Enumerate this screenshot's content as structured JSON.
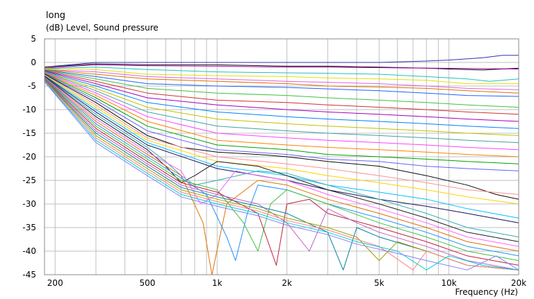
{
  "chart_data": {
    "type": "line",
    "title": "long",
    "ylabel": "(dB)  Level, Sound pressure",
    "xlabel": "Frequency  (Hz)",
    "xscale": "log",
    "xlim": [
      180,
      20000
    ],
    "ylim": [
      -45,
      5
    ],
    "yticks": [
      5,
      0,
      -5,
      -10,
      -15,
      -20,
      -25,
      -30,
      -35,
      -40,
      -45
    ],
    "xticks": [
      {
        "value": 200,
        "label": "200"
      },
      {
        "value": 500,
        "label": "500"
      },
      {
        "value": 1000,
        "label": "1k"
      },
      {
        "value": 2000,
        "label": "2k"
      },
      {
        "value": 5000,
        "label": "5k"
      },
      {
        "value": 10000,
        "label": "10k"
      },
      {
        "value": 20000,
        "label": "20k"
      }
    ],
    "grid": true,
    "legend": "none",
    "background": "#ffffff",
    "series_note": "approx. 36 overlaid frequency-response curves (polar set), values estimated",
    "series": [
      {
        "color": "#3030b0",
        "x": [
          180,
          300,
          500,
          1000,
          2000,
          3000,
          5000,
          8000,
          10000,
          14000,
          17000,
          20000
        ],
        "y": [
          -1,
          0,
          0,
          0,
          0,
          0,
          0,
          0.3,
          0.5,
          1,
          1.5,
          1.5
        ]
      },
      {
        "color": "#101010",
        "x": [
          180,
          300,
          500,
          1000,
          2000,
          3000,
          5000,
          8000,
          10000,
          14000,
          20000
        ],
        "y": [
          -1,
          -0.3,
          -0.5,
          -0.5,
          -0.8,
          -0.8,
          -1,
          -1.2,
          -1.4,
          -1.6,
          -1.2
        ]
      },
      {
        "color": "#a000a0",
        "x": [
          180,
          300,
          500,
          1000,
          2000,
          3000,
          5000,
          8000,
          12000,
          20000
        ],
        "y": [
          -1.2,
          -0.5,
          -0.7,
          -0.8,
          -1,
          -1,
          -1.1,
          -1.2,
          -1.3,
          -1.4
        ]
      },
      {
        "color": "#20c0c0",
        "x": [
          180,
          300,
          500,
          1000,
          2000,
          3000,
          5000,
          8000,
          12000,
          15000,
          20000
        ],
        "y": [
          -1.3,
          -1,
          -1.5,
          -2,
          -2.2,
          -2.3,
          -2.5,
          -3,
          -3.5,
          -4,
          -3.5
        ]
      },
      {
        "color": "#e0e000",
        "x": [
          180,
          300,
          500,
          1000,
          2000,
          3000,
          5000,
          8000,
          12000,
          20000
        ],
        "y": [
          -1.4,
          -1.5,
          -2.5,
          -2.8,
          -3,
          -3.3,
          -3.5,
          -3.8,
          -4.5,
          -4.5
        ]
      },
      {
        "color": "#e060e0",
        "x": [
          180,
          300,
          500,
          1000,
          2000,
          3000,
          5000,
          8000,
          12000,
          20000
        ],
        "y": [
          -1.5,
          -2,
          -3,
          -3.5,
          -4,
          -4.2,
          -4.5,
          -5,
          -5.5,
          -5.8
        ]
      },
      {
        "color": "#e07000",
        "x": [
          180,
          300,
          500,
          1000,
          2000,
          3000,
          5000,
          8000,
          12000,
          20000
        ],
        "y": [
          -1.5,
          -2.5,
          -3.5,
          -4,
          -4.5,
          -5,
          -5.2,
          -5.5,
          -6,
          -6.5
        ]
      },
      {
        "color": "#2060ff",
        "x": [
          180,
          300,
          500,
          1000,
          2000,
          3000,
          5000,
          8000,
          12000,
          20000
        ],
        "y": [
          -1.6,
          -3,
          -4.5,
          -5,
          -5.3,
          -5.6,
          -6,
          -6.5,
          -7,
          -7.2
        ]
      },
      {
        "color": "#40c040",
        "x": [
          180,
          300,
          500,
          1000,
          2000,
          3000,
          5000,
          8000,
          12000,
          20000
        ],
        "y": [
          -1.6,
          -3.5,
          -5.5,
          -6.5,
          -7,
          -7.5,
          -8,
          -8.5,
          -9,
          -9.5
        ]
      },
      {
        "color": "#d03030",
        "x": [
          180,
          300,
          500,
          1000,
          2000,
          3000,
          5000,
          8000,
          12000,
          20000
        ],
        "y": [
          -1.7,
          -4,
          -6.5,
          -8,
          -8.5,
          -9,
          -9.5,
          -10,
          -10.5,
          -11
        ]
      },
      {
        "color": "#a000c0",
        "x": [
          180,
          300,
          500,
          1000,
          2000,
          3000,
          5000,
          8000,
          12000,
          20000
        ],
        "y": [
          -1.8,
          -4.5,
          -7.5,
          -9,
          -10,
          -10.5,
          -11,
          -11.5,
          -12,
          -12.5
        ]
      },
      {
        "color": "#0080ff",
        "x": [
          180,
          300,
          500,
          1000,
          2000,
          3000,
          5000,
          8000,
          12000,
          20000
        ],
        "y": [
          -1.9,
          -5,
          -8.5,
          -10.5,
          -11.5,
          -12,
          -12.5,
          -13,
          -13.5,
          -14
        ]
      },
      {
        "color": "#c0c000",
        "x": [
          180,
          300,
          500,
          1000,
          2000,
          3000,
          5000,
          8000,
          12000,
          20000
        ],
        "y": [
          -2,
          -5.5,
          -9.5,
          -12,
          -13,
          -13.5,
          -14,
          -14.5,
          -15,
          -15.5
        ]
      },
      {
        "color": "#40a0a0",
        "x": [
          180,
          300,
          500,
          1000,
          2000,
          3000,
          5000,
          8000,
          12000,
          20000
        ],
        "y": [
          -2,
          -6,
          -10.5,
          -13.5,
          -14.5,
          -15,
          -15.5,
          -16,
          -16.5,
          -17
        ]
      },
      {
        "color": "#ff40ff",
        "x": [
          180,
          300,
          500,
          1000,
          2000,
          3000,
          5000,
          8000,
          12000,
          20000
        ],
        "y": [
          -2.1,
          -6.5,
          -11.5,
          -15,
          -16,
          -16.5,
          -17,
          -17.5,
          -18,
          -18.5
        ]
      },
      {
        "color": "#ff8000",
        "x": [
          180,
          300,
          500,
          1000,
          2000,
          3000,
          5000,
          8000,
          12000,
          20000
        ],
        "y": [
          -2.2,
          -7,
          -12.5,
          -16.5,
          -17.5,
          -18,
          -18.5,
          -19,
          -19.5,
          -20
        ]
      },
      {
        "color": "#00a000",
        "x": [
          180,
          300,
          500,
          1000,
          2000,
          3000,
          5000,
          8000,
          12000,
          20000
        ],
        "y": [
          -2.3,
          -7.5,
          -13.5,
          -17.5,
          -18.5,
          -19.5,
          -20,
          -20.5,
          -21,
          -21.5
        ]
      },
      {
        "color": "#6060ff",
        "x": [
          180,
          300,
          500,
          1000,
          2000,
          3000,
          5000,
          8000,
          12000,
          20000
        ],
        "y": [
          -2.4,
          -8,
          -14.5,
          -18.5,
          -19.5,
          -20.5,
          -21,
          -22,
          -22.5,
          -23
        ]
      },
      {
        "color": "#0a0a0a",
        "x": [
          180,
          300,
          500,
          700,
          1000,
          1500,
          2000,
          3000,
          5000,
          8000,
          12000,
          16000,
          20000
        ],
        "y": [
          -2.5,
          -8.5,
          -15.5,
          -18,
          -19,
          -19.5,
          -20,
          -21,
          -22,
          -24,
          -26,
          -28,
          -29
        ]
      },
      {
        "color": "#ff9090",
        "x": [
          180,
          300,
          500,
          1000,
          2000,
          3000,
          5000,
          8000,
          12000,
          20000
        ],
        "y": [
          -2.6,
          -9,
          -16,
          -20,
          -21.5,
          -22.5,
          -24,
          -25.5,
          -27,
          -28
        ]
      },
      {
        "color": "#ffd000",
        "x": [
          180,
          300,
          500,
          1000,
          2000,
          3000,
          5000,
          8000,
          12000,
          20000
        ],
        "y": [
          -2.7,
          -9.5,
          -16.5,
          -21,
          -22.5,
          -24,
          -25.5,
          -27,
          -28.5,
          -30
        ]
      },
      {
        "color": "#00c0ff",
        "x": [
          180,
          300,
          500,
          1000,
          2000,
          3000,
          5000,
          8000,
          12000,
          20000
        ],
        "y": [
          -2.8,
          -10,
          -17,
          -22,
          -24,
          -26,
          -27.5,
          -29,
          -31,
          -33
        ]
      },
      {
        "color": "#101060",
        "x": [
          180,
          300,
          500,
          1000,
          2000,
          3000,
          5000,
          8000,
          12000,
          20000
        ],
        "y": [
          -2.9,
          -10.5,
          -17.5,
          -22.5,
          -25,
          -27,
          -29,
          -30.5,
          -32,
          -34
        ]
      },
      {
        "color": "#30b0b0",
        "x": [
          180,
          300,
          500,
          600,
          700,
          800,
          1000,
          1500,
          2000,
          3000,
          5000,
          8000,
          12000,
          20000
        ],
        "y": [
          -3,
          -11,
          -18,
          -21,
          -24,
          -26,
          -25,
          -23,
          -23.5,
          -26,
          -29,
          -32,
          -35,
          -37
        ]
      },
      {
        "color": "#202020",
        "x": [
          180,
          300,
          500,
          600,
          700,
          800,
          1000,
          1500,
          2000,
          3000,
          5000,
          8000,
          12000,
          20000
        ],
        "y": [
          -3,
          -11.5,
          -18.5,
          -22,
          -25.5,
          -24,
          -21,
          -22,
          -24,
          -27,
          -30,
          -33,
          -36,
          -38
        ]
      },
      {
        "color": "#ff60ff",
        "x": [
          180,
          300,
          500,
          700,
          850,
          1000,
          1200,
          1500,
          2000,
          3000,
          5000,
          8000,
          12000,
          20000
        ],
        "y": [
          -3.1,
          -12,
          -19,
          -23,
          -30,
          -28,
          -23,
          -24,
          -25,
          -28,
          -31,
          -34,
          -37,
          -39
        ]
      },
      {
        "color": "#e07000",
        "x": [
          180,
          300,
          500,
          700,
          870,
          950,
          1100,
          1500,
          2000,
          3000,
          5000,
          8000,
          12000,
          20000
        ],
        "y": [
          -3.2,
          -12.5,
          -19.5,
          -24,
          -34,
          -45,
          -30,
          -25,
          -26,
          -29,
          -32,
          -35,
          -38,
          -40
        ]
      },
      {
        "color": "#2090ff",
        "x": [
          180,
          300,
          500,
          700,
          900,
          1100,
          1200,
          1350,
          1500,
          2000,
          3000,
          5000,
          8000,
          12000,
          20000
        ],
        "y": [
          -3.3,
          -13,
          -20,
          -24.5,
          -28,
          -37,
          -42,
          -32,
          -26,
          -27,
          -30,
          -33,
          -36,
          -39,
          -41
        ]
      },
      {
        "color": "#40c040",
        "x": [
          180,
          300,
          500,
          700,
          1000,
          1300,
          1500,
          1700,
          2000,
          3000,
          5000,
          8000,
          12000,
          20000
        ],
        "y": [
          -3.4,
          -13.5,
          -20.5,
          -25,
          -27,
          -34,
          -40,
          -30,
          -27,
          -30,
          -34,
          -37,
          -40,
          -42
        ]
      },
      {
        "color": "#c02040",
        "x": [
          180,
          300,
          500,
          700,
          1000,
          1500,
          1800,
          2000,
          2500,
          3000,
          5000,
          8000,
          12000,
          20000
        ],
        "y": [
          -3.5,
          -14,
          -21,
          -25.5,
          -27.5,
          -32,
          -43,
          -30,
          -29,
          -32,
          -35,
          -38,
          -41,
          -43
        ]
      },
      {
        "color": "#c060c0",
        "x": [
          180,
          300,
          500,
          700,
          1000,
          1500,
          2000,
          2500,
          3000,
          4000,
          5000,
          8000,
          12000,
          20000
        ],
        "y": [
          -3.6,
          -14.5,
          -21.5,
          -26,
          -28,
          -30,
          -34,
          -40,
          -31,
          -34,
          -36,
          -39,
          -42,
          -44
        ]
      },
      {
        "color": "#0080a0",
        "x": [
          180,
          300,
          500,
          700,
          1000,
          1500,
          2000,
          3000,
          3500,
          4000,
          5000,
          8000,
          12000,
          20000
        ],
        "y": [
          -3.7,
          -15,
          -22,
          -26.5,
          -28.5,
          -30.5,
          -32,
          -36,
          -44,
          -35,
          -37,
          -40,
          -43,
          -44
        ]
      },
      {
        "color": "#a0a000",
        "x": [
          180,
          300,
          500,
          700,
          1000,
          1500,
          2000,
          3000,
          4000,
          5000,
          6000,
          8000,
          12000,
          20000
        ],
        "y": [
          -3.8,
          -15.5,
          -22.5,
          -27,
          -29,
          -31,
          -33,
          -35,
          -37,
          -42,
          -38,
          -40,
          -43,
          -44
        ]
      },
      {
        "color": "#ff8080",
        "x": [
          180,
          300,
          500,
          700,
          1000,
          1500,
          2000,
          3000,
          4000,
          5000,
          7000,
          8000,
          12000,
          20000
        ],
        "y": [
          -3.9,
          -16,
          -23,
          -27.5,
          -29.5,
          -31.5,
          -33.5,
          -35.5,
          -37.5,
          -39,
          -44,
          -40,
          -43,
          -44
        ]
      },
      {
        "color": "#00d0d0",
        "x": [
          180,
          300,
          500,
          700,
          1000,
          1500,
          2000,
          3000,
          4000,
          6000,
          8000,
          10000,
          14000,
          20000
        ],
        "y": [
          -4,
          -16.5,
          -23.5,
          -28,
          -30,
          -32,
          -34,
          -36,
          -38,
          -40,
          -44,
          -41,
          -43,
          -44
        ]
      },
      {
        "color": "#8080ff",
        "x": [
          180,
          300,
          500,
          700,
          1000,
          1500,
          2000,
          3000,
          4000,
          6000,
          8000,
          12000,
          16000,
          20000
        ],
        "y": [
          -4.1,
          -17,
          -24,
          -28.5,
          -30.5,
          -32.5,
          -34.5,
          -36.5,
          -38.5,
          -40.5,
          -42,
          -44,
          -41,
          -44
        ]
      }
    ]
  }
}
